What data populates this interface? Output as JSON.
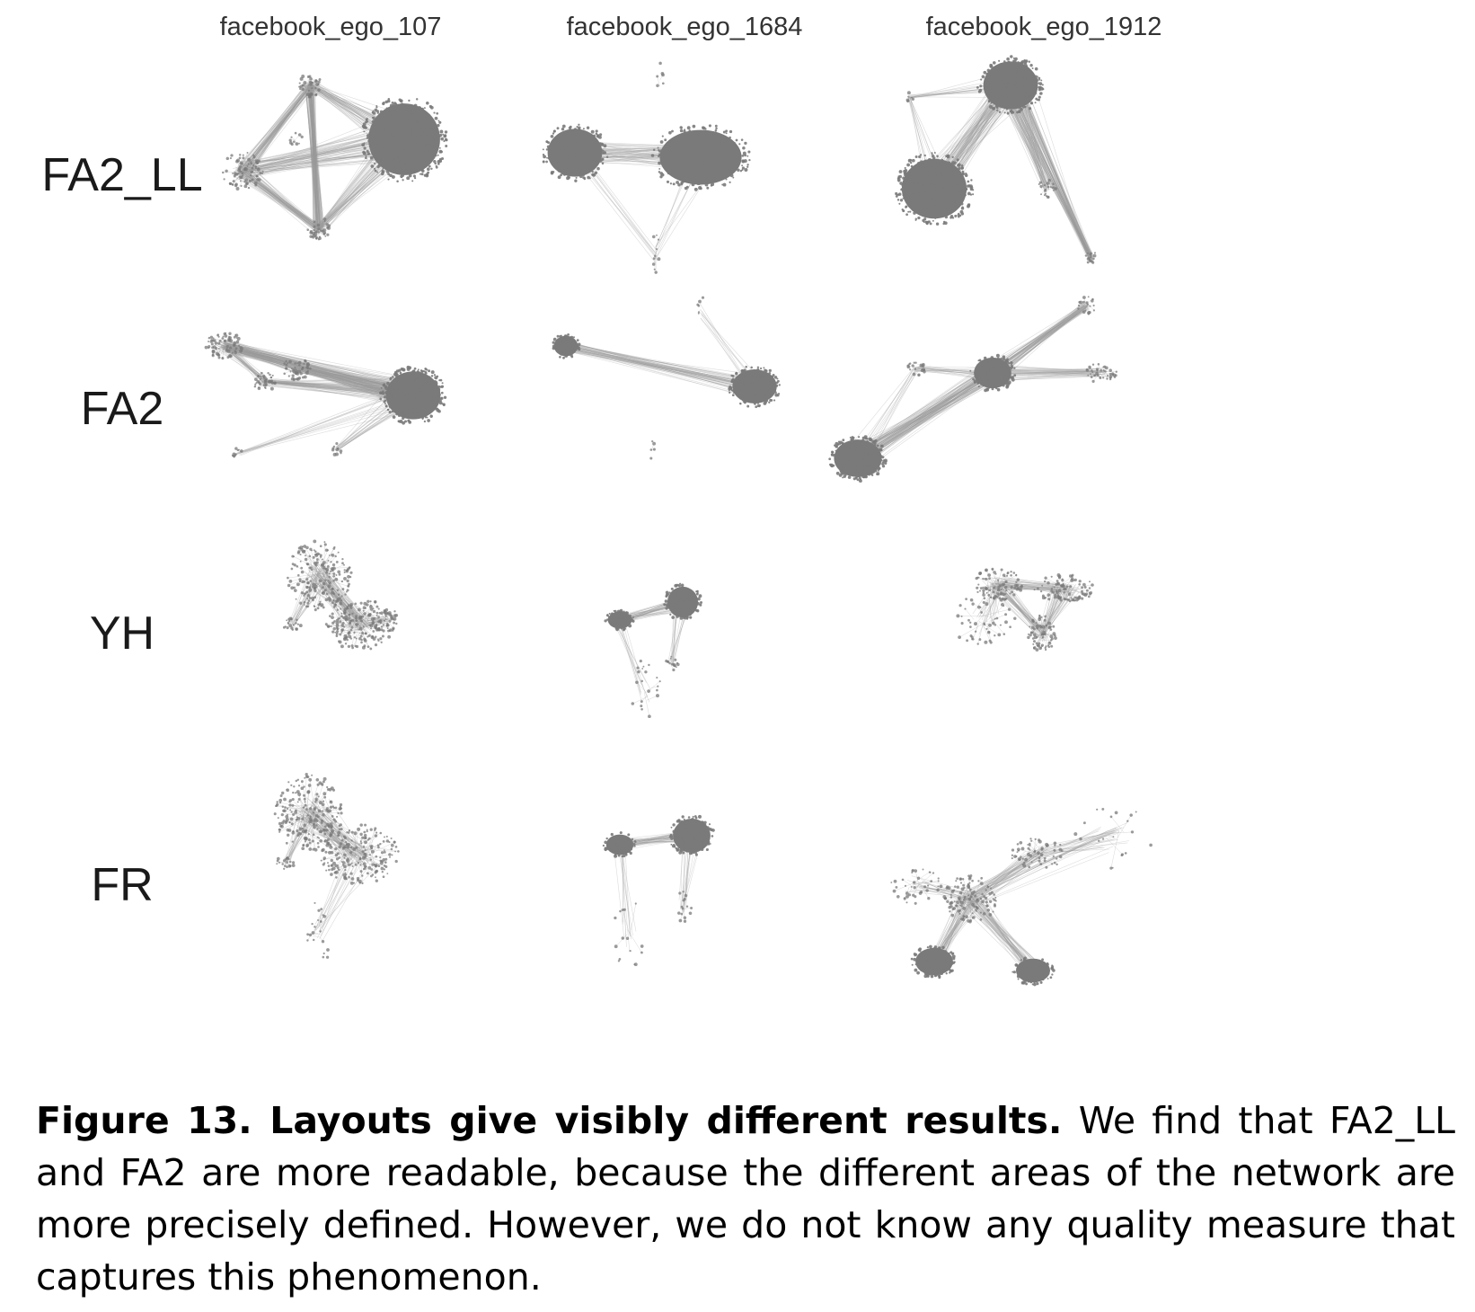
{
  "columns": [
    "facebook_ego_107",
    "facebook_ego_1684",
    "facebook_ego_1912"
  ],
  "rows": [
    "FA2_LL",
    "FA2",
    "YH",
    "FR"
  ],
  "caption": {
    "label": "Figure 13. Layouts give visibly different results.",
    "text": " We find that FA2_LL and FA2 are more readable, because the different areas of the network are more precisely defined. However, we do not know any quality measure that captures this phenomenon."
  },
  "colors": {
    "node": "#7a7a7a",
    "edge": "#9a9a9a"
  }
}
